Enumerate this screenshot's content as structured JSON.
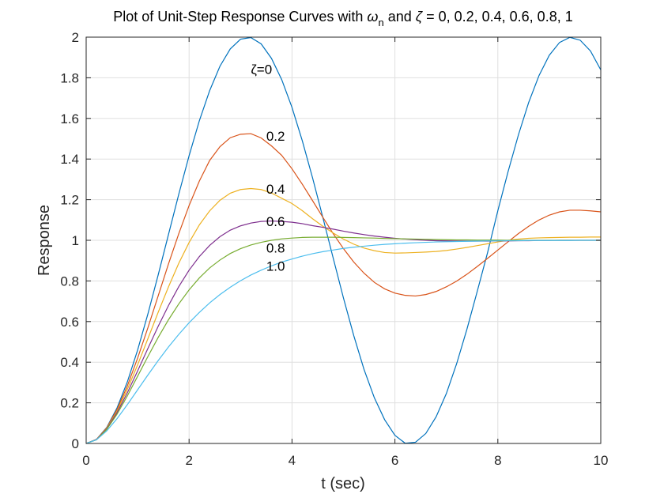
{
  "chart_data": {
    "type": "line",
    "title_parts": {
      "prefix": "Plot of Unit-Step Response Curves with ",
      "omega": "ω",
      "omega_sub": "n",
      "middle": " and ",
      "zeta": "ζ",
      "suffix": " = 0, 0.2, 0.4, 0.6, 0.8, 1"
    },
    "xlabel": "t (sec)",
    "ylabel": "Response",
    "xlim": [
      0,
      10
    ],
    "ylim": [
      0,
      2
    ],
    "xticks": [
      0,
      2,
      4,
      6,
      8,
      10
    ],
    "yticks": [
      0,
      0.2,
      0.4,
      0.6,
      0.8,
      1,
      1.2,
      1.4,
      1.6,
      1.8,
      2
    ],
    "grid": true,
    "x": [
      0,
      0.2,
      0.4,
      0.6,
      0.8,
      1,
      1.2,
      1.4,
      1.6,
      1.8,
      2,
      2.2,
      2.4,
      2.6,
      2.8,
      3,
      3.2,
      3.4,
      3.6,
      3.8,
      4,
      4.2,
      4.4,
      4.6,
      4.8,
      5,
      5.2,
      5.4,
      5.6,
      5.8,
      6,
      6.2,
      6.4,
      6.6,
      6.8,
      7,
      7.2,
      7.4,
      7.6,
      7.8,
      8,
      8.2,
      8.4,
      8.6,
      8.8,
      9,
      9.2,
      9.4,
      9.6,
      9.8,
      10
    ],
    "series": [
      {
        "color": "#0072BD",
        "values": [
          0,
          0.02,
          0.079,
          0.175,
          0.303,
          0.46,
          0.638,
          0.83,
          1.029,
          1.227,
          1.416,
          1.589,
          1.737,
          1.857,
          1.942,
          1.99,
          1.998,
          1.967,
          1.896,
          1.791,
          1.654,
          1.49,
          1.307,
          1.112,
          0.913,
          0.716,
          0.531,
          0.364,
          0.225,
          0.117,
          0.04,
          0.001,
          0.006,
          0.049,
          0.131,
          0.246,
          0.393,
          0.563,
          0.749,
          0.939,
          1.146,
          1.339,
          1.519,
          1.679,
          1.811,
          1.911,
          1.974,
          1.999,
          1.985,
          1.932,
          1.839
        ]
      },
      {
        "color": "#D95319",
        "values": [
          0,
          0.02,
          0.077,
          0.167,
          0.283,
          0.42,
          0.57,
          0.727,
          0.884,
          1.033,
          1.171,
          1.292,
          1.393,
          1.461,
          1.505,
          1.522,
          1.525,
          1.504,
          1.465,
          1.418,
          1.352,
          1.276,
          1.195,
          1.113,
          1.033,
          0.959,
          0.893,
          0.838,
          0.793,
          0.761,
          0.74,
          0.729,
          0.726,
          0.733,
          0.748,
          0.771,
          0.799,
          0.833,
          0.871,
          0.911,
          0.952,
          0.993,
          1.033,
          1.069,
          1.1,
          1.124,
          1.14,
          1.148,
          1.148,
          1.145,
          1.14
        ]
      },
      {
        "color": "#EDB120",
        "values": [
          0,
          0.019,
          0.075,
          0.159,
          0.266,
          0.387,
          0.516,
          0.646,
          0.771,
          0.887,
          0.989,
          1.076,
          1.145,
          1.197,
          1.232,
          1.25,
          1.255,
          1.25,
          1.233,
          1.207,
          1.181,
          1.146,
          1.106,
          1.069,
          1.036,
          1.006,
          0.981,
          0.962,
          0.949,
          0.94,
          0.937,
          0.938,
          0.94,
          0.942,
          0.945,
          0.95,
          0.957,
          0.965,
          0.974,
          0.983,
          0.992,
          1.0,
          1.006,
          1.01,
          1.012,
          1.013,
          1.014,
          1.015,
          1.015,
          1.016,
          1.016
        ]
      },
      {
        "color": "#7E2F8E",
        "values": [
          0,
          0.019,
          0.072,
          0.152,
          0.249,
          0.357,
          0.468,
          0.577,
          0.679,
          0.772,
          0.853,
          0.92,
          0.975,
          1.018,
          1.05,
          1.071,
          1.085,
          1.093,
          1.095,
          1.093,
          1.089,
          1.082,
          1.072,
          1.064,
          1.055,
          1.045,
          1.036,
          1.028,
          1.021,
          1.015,
          1.01,
          1.006,
          1.003,
          1.0,
          0.998,
          0.997,
          0.996,
          0.996,
          0.996,
          0.996,
          0.997,
          0.997,
          0.998,
          0.998,
          0.999,
          0.999,
          1.0,
          1.0,
          1.0,
          1.0,
          1.0
        ]
      },
      {
        "color": "#77AC30",
        "values": [
          0,
          0.018,
          0.069,
          0.144,
          0.234,
          0.331,
          0.428,
          0.522,
          0.609,
          0.687,
          0.756,
          0.815,
          0.864,
          0.903,
          0.935,
          0.959,
          0.977,
          0.99,
          1.0,
          1.007,
          1.011,
          1.014,
          1.015,
          1.015,
          1.015,
          1.014,
          1.013,
          1.012,
          1.011,
          1.009,
          1.008,
          1.007,
          1.006,
          1.005,
          1.004,
          1.003,
          1.002,
          1.002,
          1.001,
          1.001,
          1.001,
          1.0,
          1.0,
          1.0,
          1.0,
          1.0,
          1.0,
          1.0,
          1.0,
          1.0,
          1.0
        ]
      },
      {
        "color": "#4DBEEE",
        "values": [
          0,
          0.018,
          0.062,
          0.122,
          0.191,
          0.264,
          0.337,
          0.408,
          0.475,
          0.537,
          0.594,
          0.645,
          0.692,
          0.733,
          0.769,
          0.801,
          0.829,
          0.853,
          0.874,
          0.893,
          0.908,
          0.922,
          0.934,
          0.944,
          0.952,
          0.96,
          0.966,
          0.971,
          0.976,
          0.98,
          0.983,
          0.986,
          0.988,
          0.99,
          0.992,
          0.993,
          0.994,
          0.995,
          0.996,
          0.997,
          0.997,
          0.998,
          0.998,
          0.999,
          0.999,
          0.999,
          0.999,
          0.999,
          1.0,
          1.0,
          1.0
        ]
      }
    ],
    "annotations": [
      {
        "text": "ζ=0",
        "x": 3.2,
        "y": 1.82
      },
      {
        "text": "0.2",
        "x": 3.5,
        "y": 1.49
      },
      {
        "text": "0.4",
        "x": 3.5,
        "y": 1.23
      },
      {
        "text": "0.6",
        "x": 3.5,
        "y": 1.07
      },
      {
        "text": "0.8",
        "x": 3.5,
        "y": 0.94
      },
      {
        "text": "1.0",
        "x": 3.5,
        "y": 0.85
      }
    ]
  }
}
